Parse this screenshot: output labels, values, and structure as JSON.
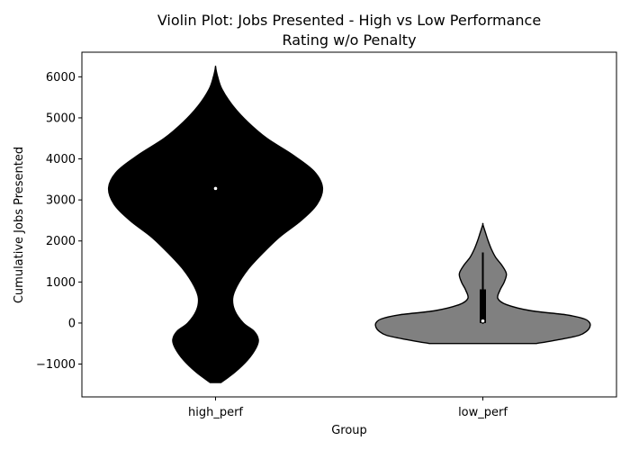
{
  "chart_data": {
    "type": "violin",
    "title_line1": "Violin Plot: Jobs Presented - High vs Low Performance",
    "title_line2": "Rating w/o Penalty",
    "xlabel": "Group",
    "ylabel": "Cumulative Jobs Presented",
    "categories": [
      "high_perf",
      "low_perf"
    ],
    "ylim": [
      -1800,
      6600
    ],
    "yticks": [
      -1000,
      0,
      1000,
      2000,
      3000,
      4000,
      5000,
      6000
    ],
    "ytick_labels": [
      "−1000",
      "0",
      "1000",
      "2000",
      "3000",
      "4000",
      "5000",
      "6000"
    ],
    "grid": false,
    "series": [
      {
        "category": "high_perf",
        "color": "#000000",
        "range": [
          -1450,
          6230
        ],
        "median": 3280,
        "quartiles": [
          -250,
          3850
        ],
        "whisker": [
          -1450,
          6230
        ],
        "density": [
          [
            -1450,
            0.05
          ],
          [
            -1200,
            0.18
          ],
          [
            -900,
            0.3
          ],
          [
            -600,
            0.38
          ],
          [
            -400,
            0.4
          ],
          [
            -200,
            0.36
          ],
          [
            0,
            0.26
          ],
          [
            300,
            0.18
          ],
          [
            600,
            0.16
          ],
          [
            900,
            0.2
          ],
          [
            1300,
            0.3
          ],
          [
            1700,
            0.44
          ],
          [
            2100,
            0.6
          ],
          [
            2500,
            0.8
          ],
          [
            2900,
            0.95
          ],
          [
            3300,
            1.0
          ],
          [
            3700,
            0.92
          ],
          [
            4100,
            0.72
          ],
          [
            4500,
            0.48
          ],
          [
            4900,
            0.3
          ],
          [
            5300,
            0.16
          ],
          [
            5700,
            0.06
          ],
          [
            6000,
            0.02
          ],
          [
            6230,
            0.0
          ]
        ]
      },
      {
        "category": "low_perf",
        "color": "#808080",
        "range": [
          -500,
          2400
        ],
        "median": 50,
        "quartiles": [
          0,
          820
        ],
        "whisker": [
          -20,
          1720
        ],
        "density": [
          [
            -500,
            0.5
          ],
          [
            -400,
            0.72
          ],
          [
            -300,
            0.9
          ],
          [
            -200,
            0.97
          ],
          [
            -100,
            1.0
          ],
          [
            0,
            1.0
          ],
          [
            100,
            0.95
          ],
          [
            200,
            0.78
          ],
          [
            300,
            0.45
          ],
          [
            450,
            0.22
          ],
          [
            600,
            0.14
          ],
          [
            800,
            0.16
          ],
          [
            1000,
            0.2
          ],
          [
            1200,
            0.22
          ],
          [
            1400,
            0.18
          ],
          [
            1600,
            0.12
          ],
          [
            1800,
            0.08
          ],
          [
            2000,
            0.05
          ],
          [
            2200,
            0.025
          ],
          [
            2400,
            0.0
          ]
        ]
      }
    ]
  }
}
